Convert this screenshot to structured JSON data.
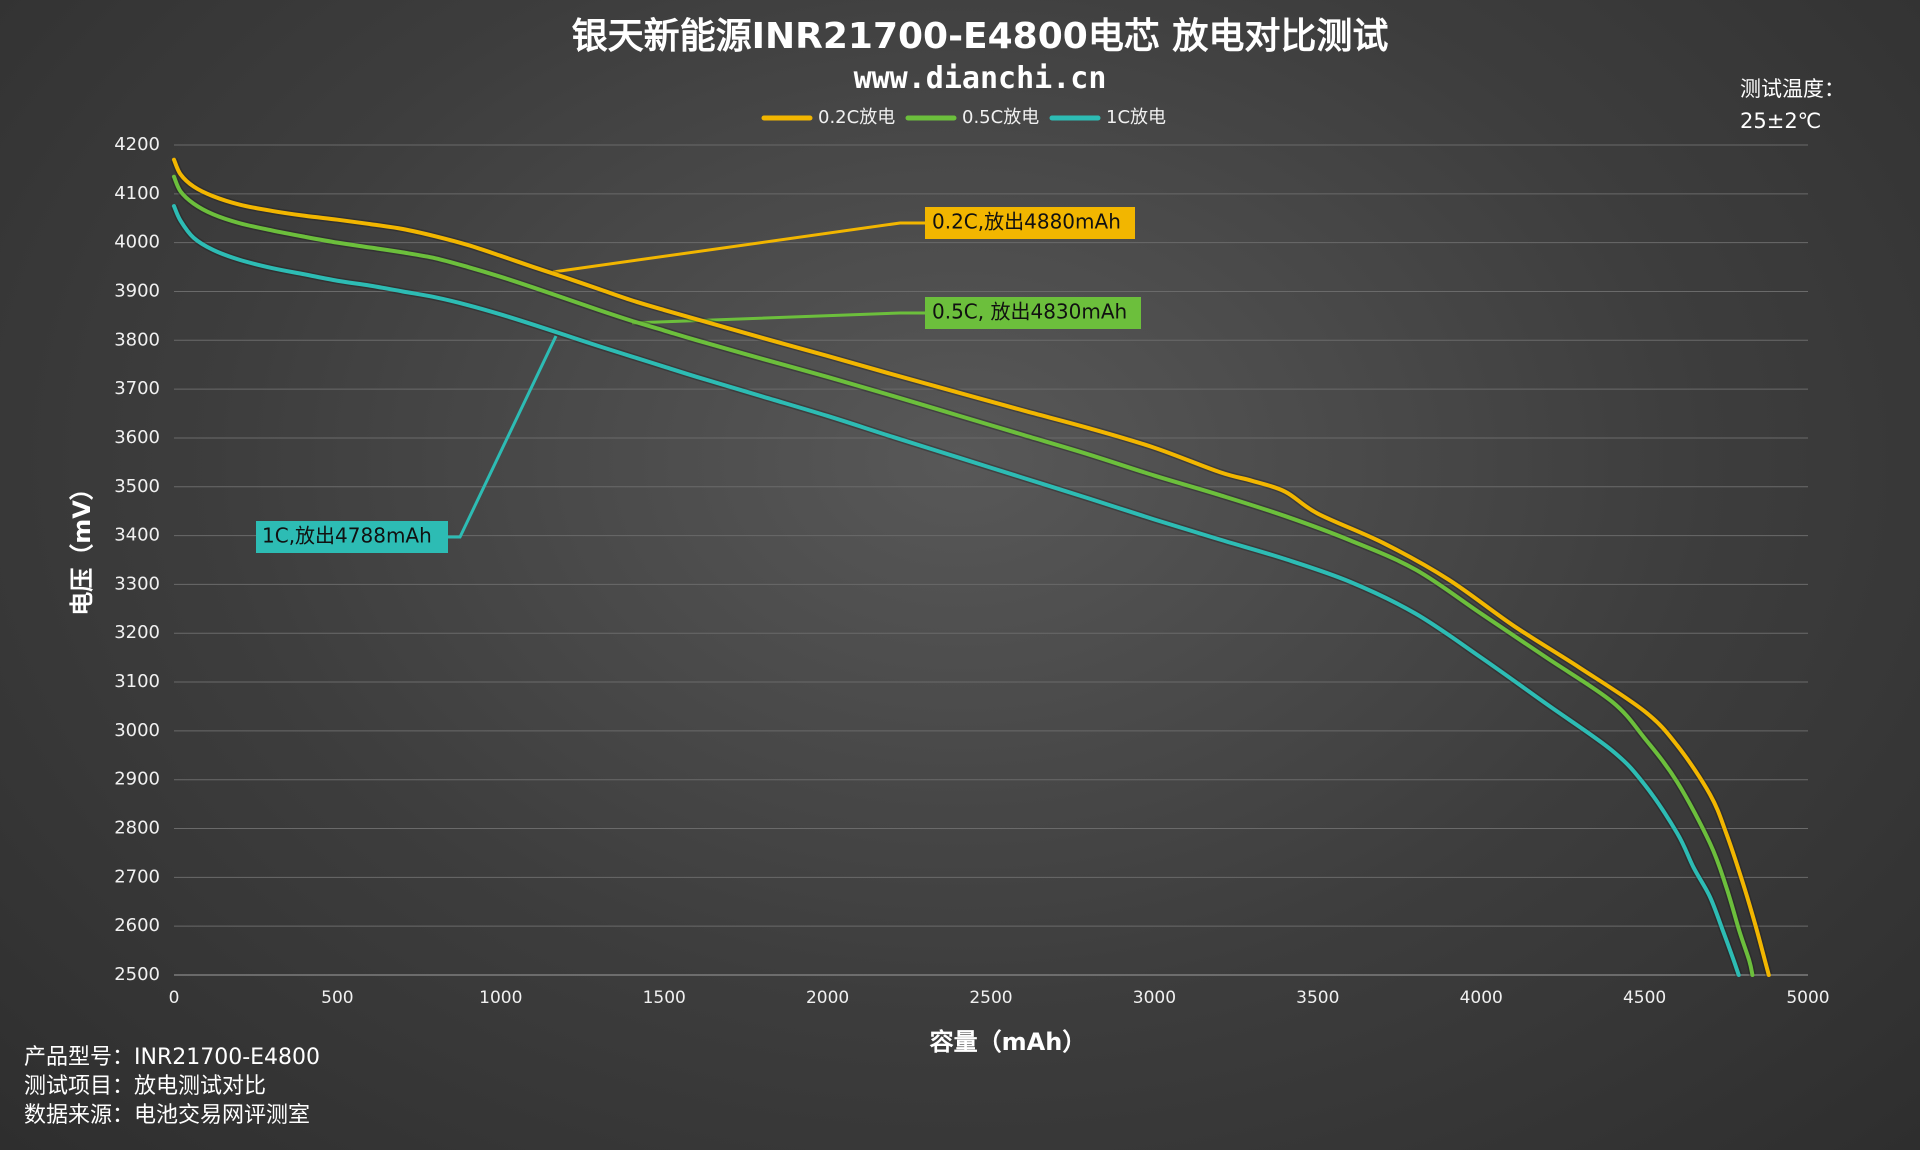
{
  "chart_data": {
    "type": "line",
    "title": "银天新能源INR21700-E4800电芯 放电对比测试",
    "subtitle": "www.dianchi.cn",
    "xlabel": "容量（mAh）",
    "ylabel": "电压（mV）",
    "xlim": [
      0,
      5000
    ],
    "ylim": [
      2500,
      4200
    ],
    "x_ticks": [
      "0",
      "500",
      "1000",
      "1500",
      "2000",
      "2500",
      "3000",
      "3500",
      "4000",
      "4500",
      "5000"
    ],
    "y_ticks": [
      "4200",
      "4100",
      "4000",
      "3900",
      "3800",
      "3700",
      "3600",
      "3500",
      "3400",
      "3300",
      "3200",
      "3100",
      "3000",
      "2900",
      "2800",
      "2700",
      "2600",
      "2500"
    ],
    "grid": "horizontal",
    "legend_position": "top-center",
    "series": [
      {
        "name": "0.2C放电",
        "color": "#f2b600",
        "x": [
          0,
          20,
          60,
          120,
          200,
          300,
          400,
          500,
          600,
          700,
          800,
          900,
          1000,
          1100,
          1200,
          1300,
          1400,
          1500,
          1600,
          1800,
          2000,
          2200,
          2400,
          2600,
          2800,
          3000,
          3200,
          3300,
          3400,
          3500,
          3700,
          3900,
          4100,
          4300,
          4500,
          4600,
          4700,
          4750,
          4800,
          4840,
          4870,
          4880
        ],
        "values": [
          4170,
          4140,
          4115,
          4095,
          4078,
          4065,
          4055,
          4047,
          4038,
          4028,
          4013,
          3995,
          3973,
          3950,
          3928,
          3905,
          3882,
          3862,
          3843,
          3805,
          3768,
          3730,
          3693,
          3656,
          3620,
          3580,
          3530,
          3512,
          3490,
          3445,
          3385,
          3310,
          3215,
          3130,
          3040,
          2970,
          2870,
          2790,
          2690,
          2600,
          2525,
          2500
        ]
      },
      {
        "name": "0.5C放电",
        "color": "#6cbf3c",
        "x": [
          0,
          20,
          60,
          120,
          200,
          300,
          400,
          500,
          600,
          700,
          800,
          900,
          1000,
          1100,
          1200,
          1300,
          1400,
          1500,
          1600,
          1800,
          2000,
          2200,
          2400,
          2600,
          2800,
          3000,
          3200,
          3400,
          3600,
          3800,
          4000,
          4200,
          4400,
          4500,
          4600,
          4700,
          4750,
          4790,
          4820,
          4830
        ],
        "values": [
          4135,
          4105,
          4080,
          4058,
          4040,
          4025,
          4012,
          4000,
          3990,
          3980,
          3968,
          3950,
          3930,
          3908,
          3885,
          3862,
          3840,
          3820,
          3800,
          3762,
          3725,
          3686,
          3646,
          3606,
          3566,
          3523,
          3483,
          3440,
          3390,
          3330,
          3240,
          3150,
          3060,
          2985,
          2895,
          2770,
          2680,
          2590,
          2530,
          2500
        ]
      },
      {
        "name": "1C放电",
        "color": "#2dbcb4",
        "x": [
          0,
          20,
          60,
          120,
          200,
          300,
          400,
          500,
          600,
          700,
          800,
          900,
          1000,
          1100,
          1200,
          1300,
          1400,
          1500,
          1600,
          1800,
          2000,
          2200,
          2400,
          2600,
          2800,
          3000,
          3200,
          3400,
          3600,
          3800,
          4000,
          4200,
          4400,
          4500,
          4600,
          4650,
          4700,
          4740,
          4770,
          4788
        ],
        "values": [
          4075,
          4045,
          4010,
          3985,
          3965,
          3948,
          3935,
          3922,
          3912,
          3900,
          3888,
          3872,
          3853,
          3832,
          3810,
          3788,
          3767,
          3746,
          3725,
          3685,
          3645,
          3602,
          3560,
          3518,
          3476,
          3433,
          3392,
          3352,
          3305,
          3240,
          3150,
          3055,
          2960,
          2890,
          2790,
          2720,
          2660,
          2590,
          2535,
          2500
        ]
      }
    ],
    "annotations": [
      {
        "text": "0.2C,放出4880mAh",
        "series": 0
      },
      {
        "text": "0.5C, 放出4830mAh",
        "series": 1
      },
      {
        "text": "1C,放出4788mAh",
        "series": 2
      }
    ]
  },
  "test_condition": {
    "label": "测试温度：",
    "value": "25±2℃"
  },
  "footer": {
    "model": "产品型号：INR21700-E4800",
    "item": "测试项目：放电测试对比",
    "source": "数据来源：电池交易网评测室"
  }
}
